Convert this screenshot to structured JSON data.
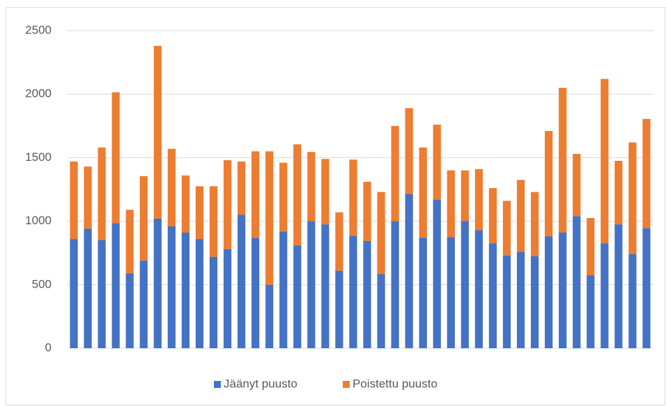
{
  "chart_data": {
    "type": "stacked_bar",
    "categories": [
      null,
      null,
      null,
      null,
      null,
      null,
      null,
      null,
      null,
      null,
      null,
      null,
      null,
      null,
      null,
      null,
      null,
      null,
      null,
      null,
      null,
      null,
      null,
      null,
      null,
      null,
      null,
      null,
      null,
      null,
      null,
      null,
      null,
      null,
      null,
      null,
      null,
      null,
      null,
      null,
      null,
      null
    ],
    "series": [
      {
        "name": "Jäänyt puusto",
        "color": "#4472c4",
        "values": [
          860,
          940,
          850,
          985,
          590,
          690,
          1020,
          960,
          910,
          860,
          720,
          780,
          1050,
          870,
          500,
          920,
          810,
          1000,
          975,
          610,
          885,
          845,
          585,
          1000,
          1215,
          870,
          1170,
          875,
          1000,
          930,
          825,
          730,
          760,
          725,
          880,
          910,
          1040,
          575,
          825,
          975,
          740,
          945
        ]
      },
      {
        "name": "Poistettu puusto",
        "color": "#ed7d31",
        "values": [
          610,
          490,
          730,
          1030,
          500,
          665,
          1360,
          610,
          450,
          415,
          555,
          700,
          420,
          680,
          1050,
          540,
          795,
          545,
          515,
          460,
          600,
          465,
          645,
          750,
          675,
          710,
          590,
          525,
          400,
          480,
          435,
          430,
          565,
          505,
          830,
          1140,
          490,
          450,
          1295,
          500,
          880,
          860
        ]
      }
    ],
    "ylim": [
      0,
      2500
    ],
    "yticks": [
      0,
      500,
      1000,
      1500,
      2000,
      2500
    ],
    "grid": true,
    "legend": "bottom"
  }
}
